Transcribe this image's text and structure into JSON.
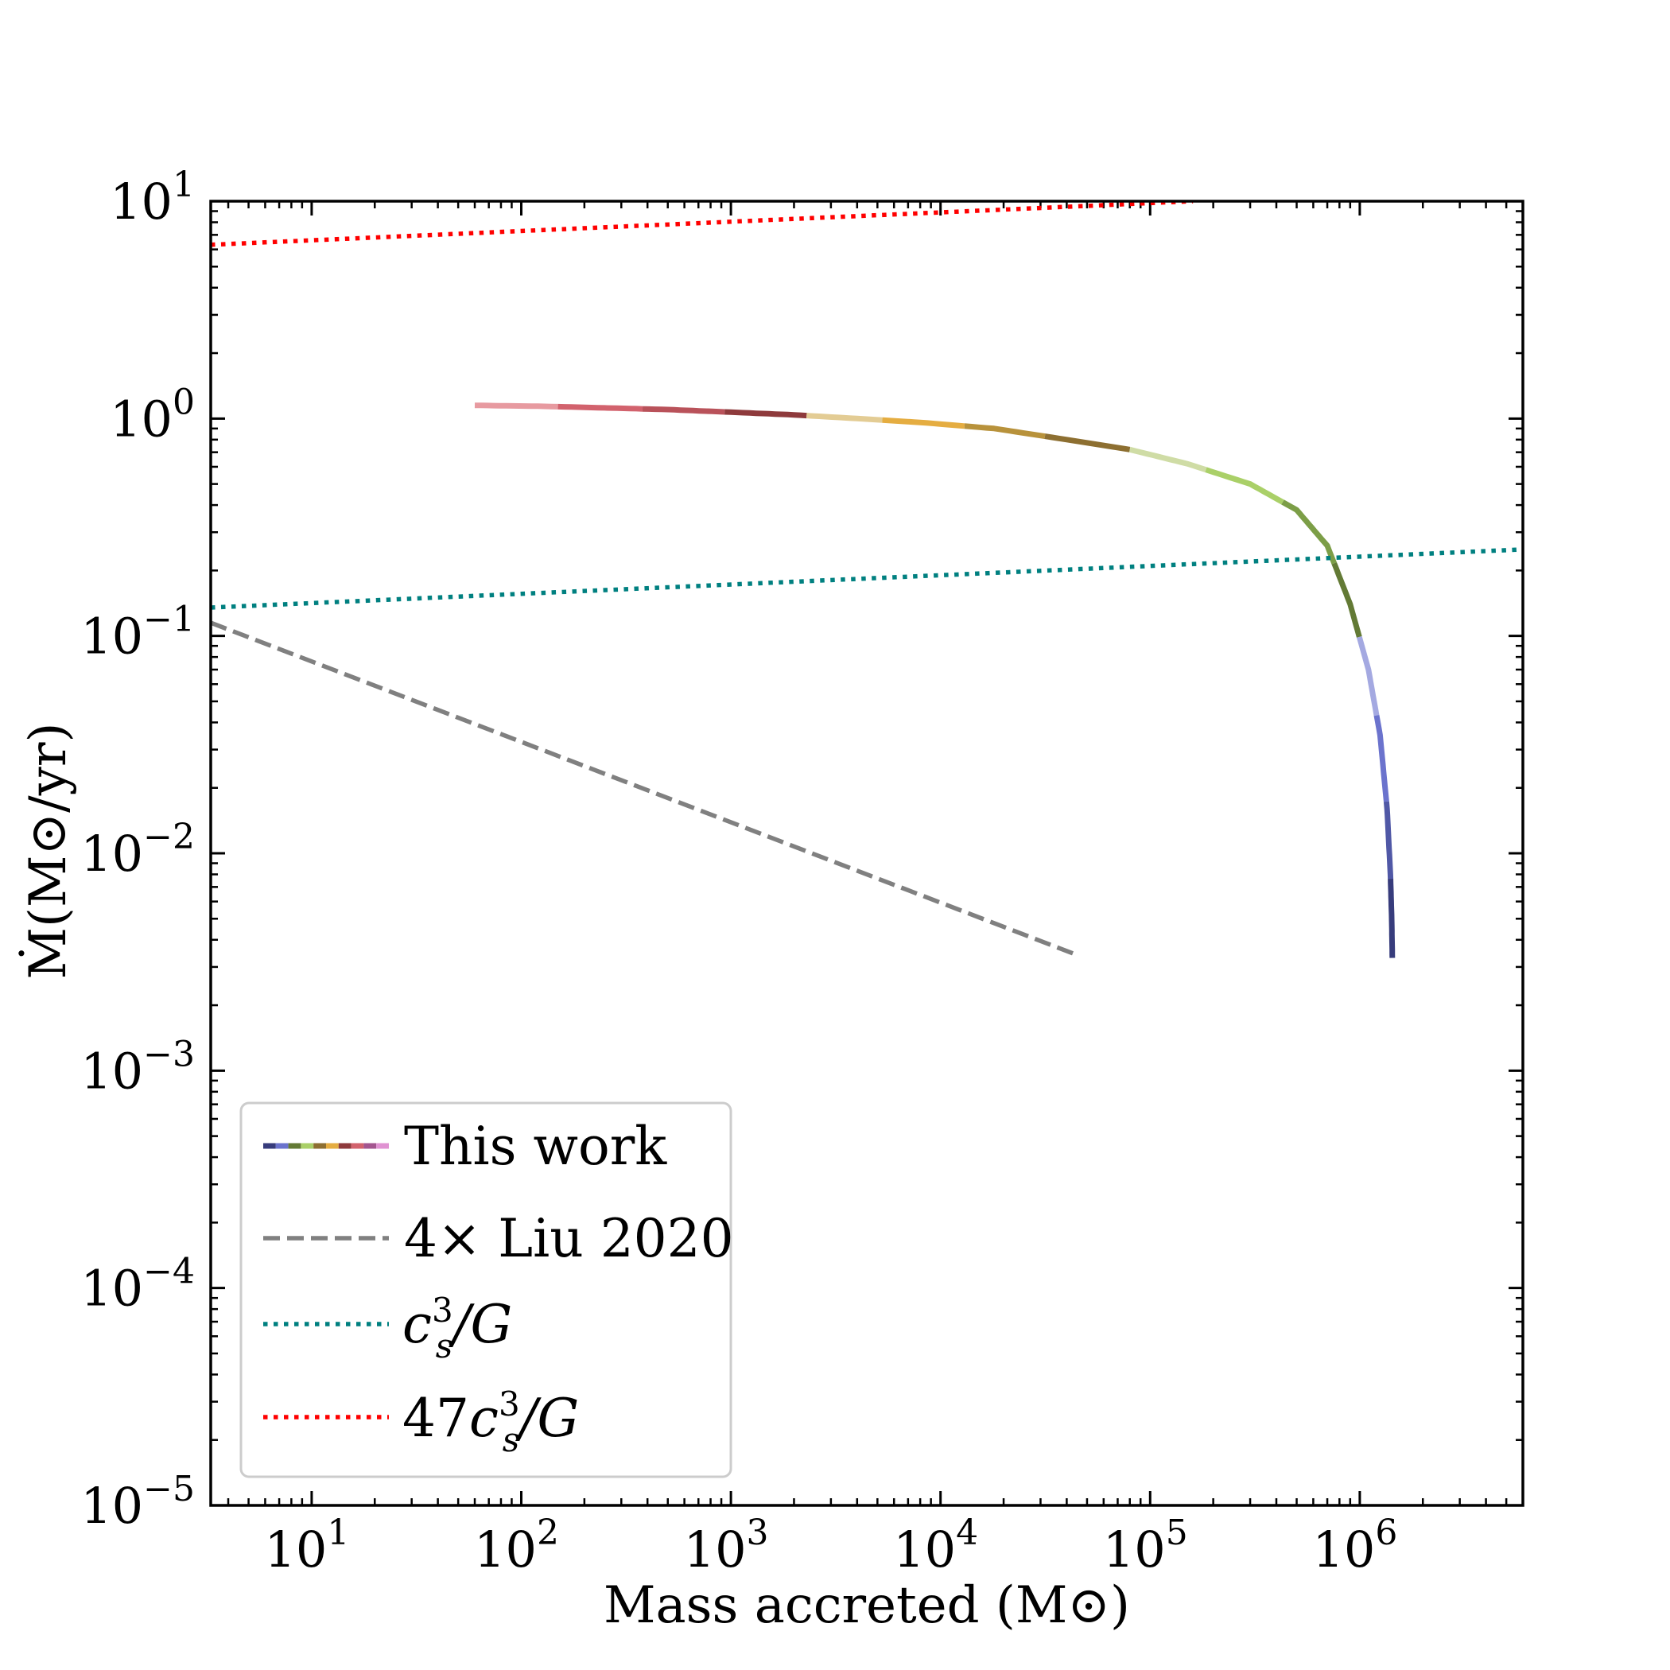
{
  "chart_data": {
    "type": "line",
    "xscale": "log",
    "yscale": "log",
    "xlim": [
      3.3,
      6000000
    ],
    "ylim": [
      1e-05,
      10
    ],
    "xlabel": "Mass accreted (M⊙)",
    "ylabel": "Ṁ(M⊙/yr)",
    "x_ticks": [
      {
        "value": 10,
        "base": "10",
        "exp": "1"
      },
      {
        "value": 100,
        "base": "10",
        "exp": "2"
      },
      {
        "value": 1000,
        "base": "10",
        "exp": "3"
      },
      {
        "value": 10000,
        "base": "10",
        "exp": "4"
      },
      {
        "value": 100000,
        "base": "10",
        "exp": "5"
      },
      {
        "value": 1000000,
        "base": "10",
        "exp": "6"
      }
    ],
    "y_ticks": [
      {
        "value": 10,
        "base": "10",
        "exp": "1"
      },
      {
        "value": 1,
        "base": "10",
        "exp": "0"
      },
      {
        "value": 0.1,
        "base": "10",
        "exp": "−1"
      },
      {
        "value": 0.01,
        "base": "10",
        "exp": "−2"
      },
      {
        "value": 0.001,
        "base": "10",
        "exp": "−3"
      },
      {
        "value": 0.0001,
        "base": "10",
        "exp": "−4"
      },
      {
        "value": 1e-05,
        "base": "10",
        "exp": "−5"
      }
    ],
    "series": [
      {
        "name": "This work",
        "style": "solid",
        "x": [
          60,
          120,
          250,
          500,
          1000,
          2000,
          4000,
          8000,
          18000,
          40000,
          80000,
          150000,
          300000,
          500000,
          700000,
          900000,
          1100000,
          1250000,
          1350000,
          1400000,
          1420000,
          1430000
        ],
        "y": [
          1.15,
          1.14,
          1.12,
          1.1,
          1.07,
          1.04,
          1.0,
          0.96,
          0.9,
          0.8,
          0.72,
          0.62,
          0.5,
          0.38,
          0.26,
          0.14,
          0.07,
          0.035,
          0.016,
          0.008,
          0.005,
          0.0033
        ],
        "segment_colors": [
          "#e79aa0",
          "#d2626d",
          "#b9525a",
          "#8e3a3c",
          "#e3cc94",
          "#e5ad41",
          "#b8923b",
          "#8d6f31",
          "#cfdca5",
          "#aad068",
          "#7c9e47",
          "#637a35",
          "#a4a9e1",
          "#6b73cd",
          "#5058a6",
          "#373c7c"
        ],
        "legend_colors": [
          "#373c7c",
          "#6b73cd",
          "#637a35",
          "#aad068",
          "#8d6f31",
          "#e5ad41",
          "#8e3a3c",
          "#d2626d",
          "#a3558f",
          "#e092d2"
        ]
      },
      {
        "name": "4× Liu 2020",
        "style": "dashed",
        "color": "#808080",
        "x": [
          3.3,
          45000
        ],
        "y": [
          0.115,
          0.0034
        ]
      },
      {
        "name": "c_s^3/G",
        "style": "dotted",
        "color": "#008080",
        "x": [
          3.3,
          6000000
        ],
        "y": [
          0.135,
          0.25
        ]
      },
      {
        "name": "47c_s^3/G",
        "style": "dotted",
        "color": "#ff0000",
        "x": [
          3.3,
          160000
        ],
        "y": [
          6.3,
          10
        ]
      }
    ],
    "legend": {
      "position": "lower-left",
      "entries": [
        {
          "label": "This work"
        },
        {
          "label": "4× Liu 2020"
        },
        {
          "label_main": "c",
          "label_sub": "s",
          "label_sup": "3",
          "label_tail": "/G"
        },
        {
          "label_prefix": "47",
          "label_main": "c",
          "label_sub": "s",
          "label_sup": "3",
          "label_tail": "/G"
        }
      ]
    }
  }
}
